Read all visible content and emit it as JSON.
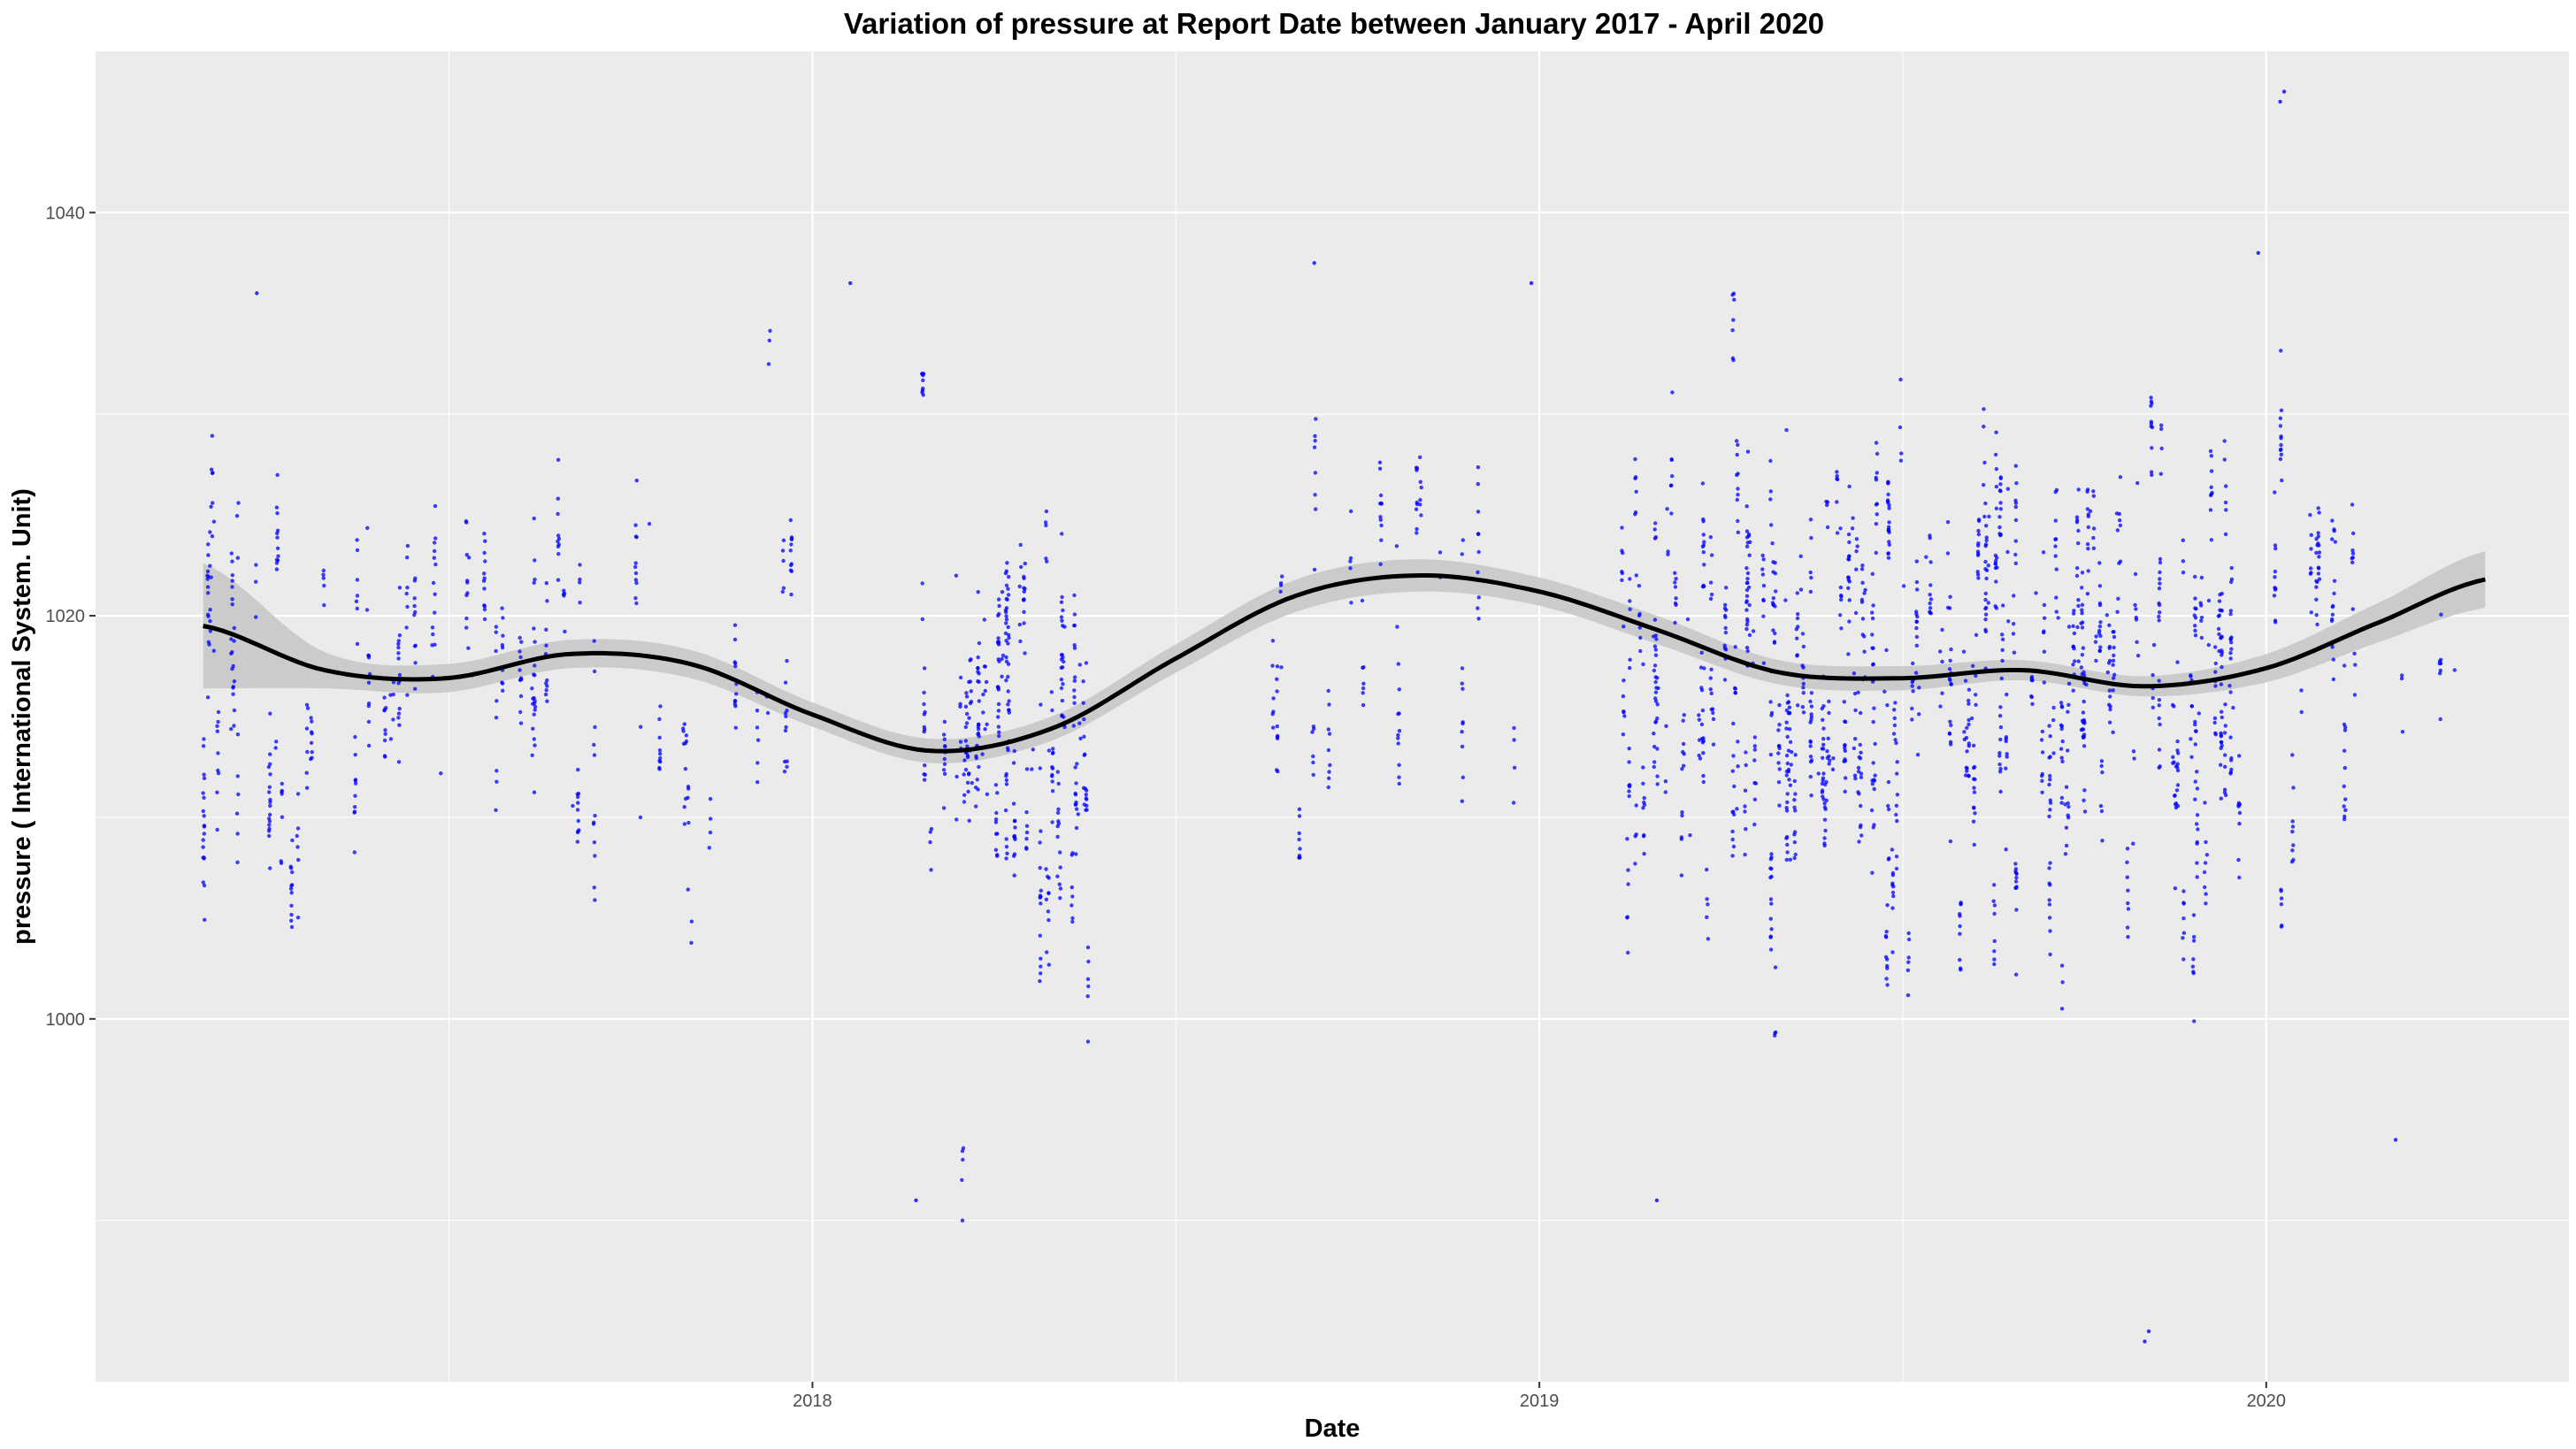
{
  "chart_data": {
    "type": "scatter",
    "title": "Variation of  pressure  at Report Date between January 2017 - April 2020",
    "xlabel": "Date",
    "ylabel": "pressure ( International System. Unit)",
    "x_axis_kind": "date",
    "xlim": [
      "2017-01-06",
      "2020-06-01"
    ],
    "ylim": [
      982,
      1048
    ],
    "x_ticks": [
      {
        "date": "2018-01-01",
        "label": "2018"
      },
      {
        "date": "2019-01-01",
        "label": "2019"
      },
      {
        "date": "2020-01-01",
        "label": "2020"
      }
    ],
    "y_ticks": [
      {
        "value": 1000,
        "label": "1000"
      },
      {
        "value": 1020,
        "label": "1020"
      },
      {
        "value": 1040,
        "label": "1040"
      }
    ],
    "grid": true,
    "background": "#EBEBEB",
    "point_color": "#0000FF",
    "smooth_color": "#000000",
    "band_color": "#C8C8C8",
    "series": [
      {
        "kind": "points",
        "clusters": [
          {
            "start": "2017-02-28",
            "end": "2017-12-25",
            "count": 480,
            "center": 1018,
            "spread": 5.5,
            "min": 998,
            "max": 1036
          },
          {
            "start": "2018-02-25",
            "end": "2018-05-20",
            "count": 380,
            "center": 1015,
            "spread": 6,
            "min": 990,
            "max": 1032
          },
          {
            "start": "2018-08-20",
            "end": "2018-12-20",
            "count": 130,
            "center": 1019,
            "spread": 5,
            "min": 1008,
            "max": 1038
          },
          {
            "start": "2019-02-10",
            "end": "2019-12-20",
            "count": 1350,
            "center": 1017,
            "spread": 6.5,
            "min": 990,
            "max": 1036
          },
          {
            "start": "2020-01-01",
            "end": "2020-04-20",
            "count": 120,
            "center": 1020,
            "spread": 6,
            "min": 993,
            "max": 1038
          }
        ],
        "extremes": [
          {
            "date": "2017-03-28",
            "value": 1036
          },
          {
            "date": "2018-01-20",
            "value": 1036.5
          },
          {
            "date": "2018-02-22",
            "value": 991
          },
          {
            "date": "2018-09-10",
            "value": 1037.5
          },
          {
            "date": "2018-12-28",
            "value": 1036.5
          },
          {
            "date": "2019-03-01",
            "value": 991
          },
          {
            "date": "2019-11-01",
            "value": 984
          },
          {
            "date": "2019-11-03",
            "value": 984.5
          },
          {
            "date": "2019-12-28",
            "value": 1038
          },
          {
            "date": "2020-01-08",
            "value": 1045.5
          },
          {
            "date": "2020-01-10",
            "value": 1046
          },
          {
            "date": "2020-03-06",
            "value": 994
          }
        ]
      },
      {
        "kind": "smooth",
        "x": [
          "2017-03-01",
          "2017-05-01",
          "2017-07-01",
          "2017-09-01",
          "2017-11-01",
          "2018-01-01",
          "2018-03-01",
          "2018-05-01",
          "2018-07-01",
          "2018-09-01",
          "2018-11-01",
          "2019-01-01",
          "2019-03-01",
          "2019-05-01",
          "2019-07-01",
          "2019-09-01",
          "2019-11-01",
          "2020-01-01",
          "2020-03-01",
          "2020-04-20"
        ],
        "y": [
          1019.5,
          1017.3,
          1016.9,
          1018.1,
          1017.6,
          1015.1,
          1013.3,
          1014.4,
          1017.8,
          1021.0,
          1022.0,
          1021.2,
          1019.3,
          1017.2,
          1016.9,
          1017.3,
          1016.5,
          1017.4,
          1019.8,
          1021.8
        ],
        "band": [
          3.1,
          0.9,
          0.7,
          0.7,
          0.7,
          0.6,
          0.6,
          0.6,
          0.7,
          0.8,
          0.8,
          0.7,
          0.7,
          0.6,
          0.6,
          0.5,
          0.5,
          0.7,
          1.0,
          1.4
        ]
      }
    ]
  }
}
